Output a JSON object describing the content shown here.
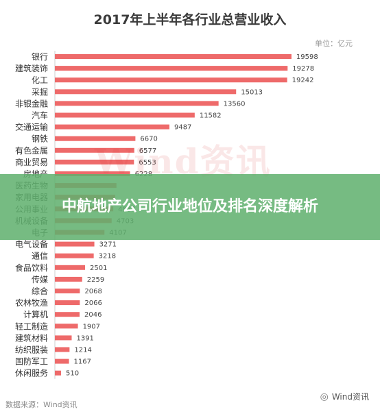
{
  "chart_data": {
    "type": "bar",
    "orientation": "horizontal",
    "title": "2017年上半年各行业总营业收入",
    "unit": "单位：亿元",
    "bar_color": "#ee6a6a",
    "xlim": [
      0,
      20000
    ],
    "grid": false,
    "categories": [
      "银行",
      "建筑装饰",
      "化工",
      "采掘",
      "非银金融",
      "汽车",
      "交通运输",
      "钢铁",
      "有色金属",
      "商业贸易",
      "房地产",
      "医药生物",
      "家用电器",
      "公用事业",
      "机械设备",
      "电子",
      "电气设备",
      "通信",
      "食品饮料",
      "传媒",
      "综合",
      "农林牧渔",
      "计算机",
      "轻工制造",
      "建筑材料",
      "纺织服装",
      "国防军工",
      "休闲服务"
    ],
    "values": [
      19598,
      19278,
      19242,
      15013,
      13560,
      11582,
      9487,
      6670,
      6577,
      6553,
      6228,
      5100,
      5000,
      4837,
      4703,
      4107,
      3271,
      3218,
      2501,
      2259,
      2068,
      2066,
      2046,
      1907,
      1391,
      1214,
      1167,
      510
    ],
    "value_labels": [
      "19598",
      "19278",
      "19242",
      "15013",
      "13560",
      "11582",
      "9487",
      "6670",
      "6577",
      "6553",
      "6228",
      "",
      "",
      "4837",
      "4703",
      "4107",
      "3271",
      "3218",
      "2501",
      "2259",
      "2068",
      "2066",
      "2046",
      "1907",
      "1391",
      "1214",
      "1167",
      "510"
    ]
  },
  "watermark": "Wind资讯",
  "overlay": {
    "text": "中航地产公司行业地位及排名深度解析",
    "color": "#60b06e"
  },
  "footer": {
    "source": "数据来源：Wind资讯",
    "brand": "Wind资讯",
    "brand_icon": "wechat-icon"
  }
}
